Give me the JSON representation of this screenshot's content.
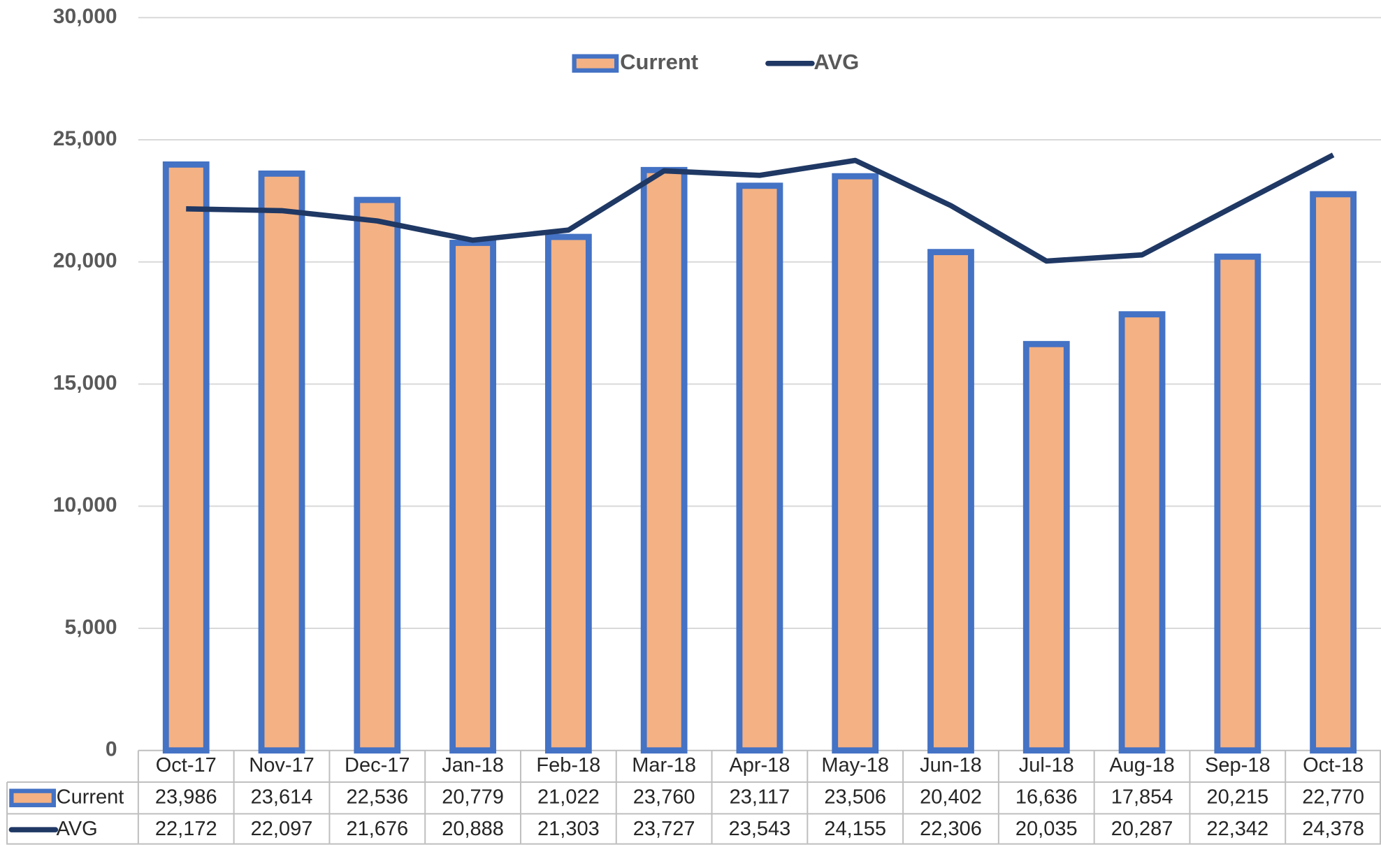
{
  "chart_data": {
    "type": "bar",
    "categories": [
      "Oct-17",
      "Nov-17",
      "Dec-17",
      "Jan-18",
      "Feb-18",
      "Mar-18",
      "Apr-18",
      "May-18",
      "Jun-18",
      "Jul-18",
      "Aug-18",
      "Sep-18",
      "Oct-18"
    ],
    "series": [
      {
        "name": "Current",
        "type": "bar",
        "color": "#f4b183",
        "edge_color": "#4472c4",
        "values": [
          23986,
          23614,
          22536,
          20779,
          21022,
          23760,
          23117,
          23506,
          20402,
          16636,
          17854,
          20215,
          22770
        ],
        "value_labels": [
          "23,986",
          "23,614",
          "22,536",
          "20,779",
          "21,022",
          "23,760",
          "23,117",
          "23,506",
          "20,402",
          "16,636",
          "17,854",
          "20,215",
          "22,770"
        ]
      },
      {
        "name": "AVG",
        "type": "line",
        "color": "#1f3864",
        "values": [
          22172,
          22097,
          21676,
          20888,
          21303,
          23727,
          23543,
          24155,
          22306,
          20035,
          20287,
          22342,
          24378
        ],
        "value_labels": [
          "22,172",
          "22,097",
          "21,676",
          "20,888",
          "21,303",
          "23,727",
          "23,543",
          "24,155",
          "22,306",
          "20,035",
          "20,287",
          "22,342",
          "24,378"
        ]
      }
    ],
    "ylim": [
      0,
      30000
    ],
    "yticks": [
      0,
      {
        "value": 5000,
        "label": "5,000"
      },
      {
        "value": 10000,
        "label": "10,000"
      },
      {
        "value": 15000,
        "label": "15,000"
      },
      {
        "value": 20000,
        "label": "20,000"
      },
      {
        "value": 25000,
        "label": "25,000"
      },
      {
        "value": 30000,
        "label": "30,000"
      }
    ],
    "grid": true,
    "legend": "top"
  }
}
